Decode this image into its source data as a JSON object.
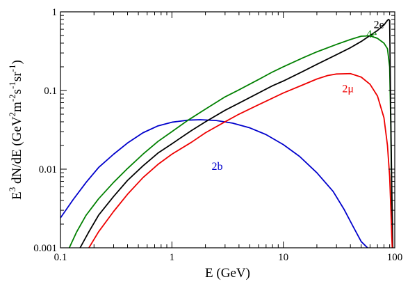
{
  "chart_data": {
    "type": "line",
    "title": "",
    "xlabel": "E (GeV)",
    "ylabel": {
      "parts": [
        "E",
        "3",
        " dN/dE (GeV",
        "2",
        "m",
        "-2",
        "s",
        "-1",
        "sr",
        "-1",
        ")"
      ]
    },
    "xscale": "log",
    "yscale": "log",
    "xlim": [
      0.1,
      100
    ],
    "ylim": [
      0.001,
      1
    ],
    "grid": false,
    "legend": "none",
    "x_ticks": [
      {
        "value": 0.1,
        "label": "0.1"
      },
      {
        "value": 1,
        "label": "1"
      },
      {
        "value": 10,
        "label": "10"
      },
      {
        "value": 100,
        "label": "100"
      }
    ],
    "y_ticks": [
      {
        "value": 0.001,
        "label": "0.001"
      },
      {
        "value": 0.01,
        "label": "0.01"
      },
      {
        "value": 0.1,
        "label": "0.1"
      },
      {
        "value": 1,
        "label": "1"
      }
    ],
    "series": [
      {
        "name": "2b",
        "color": "#0000cc",
        "label_at": [
          2.55,
          0.0098
        ],
        "points": [
          [
            0.1,
            0.0024
          ],
          [
            0.13,
            0.0041
          ],
          [
            0.17,
            0.0068
          ],
          [
            0.22,
            0.0105
          ],
          [
            0.3,
            0.0155
          ],
          [
            0.4,
            0.0215
          ],
          [
            0.55,
            0.029
          ],
          [
            0.75,
            0.0355
          ],
          [
            1.0,
            0.0395
          ],
          [
            1.4,
            0.042
          ],
          [
            1.8,
            0.0425
          ],
          [
            2.5,
            0.0415
          ],
          [
            3.5,
            0.0385
          ],
          [
            5.0,
            0.0335
          ],
          [
            7.0,
            0.0275
          ],
          [
            10,
            0.0205
          ],
          [
            14,
            0.0145
          ],
          [
            20,
            0.009
          ],
          [
            28,
            0.0052
          ],
          [
            35,
            0.0031
          ],
          [
            42,
            0.0019
          ],
          [
            50,
            0.0012
          ],
          [
            57,
            0.001
          ]
        ]
      },
      {
        "name": "4e",
        "color": "#008000",
        "label_at": [
          62,
          0.47
        ],
        "points": [
          [
            0.12,
            0.001
          ],
          [
            0.14,
            0.0016
          ],
          [
            0.17,
            0.0026
          ],
          [
            0.22,
            0.0042
          ],
          [
            0.3,
            0.0068
          ],
          [
            0.4,
            0.0102
          ],
          [
            0.55,
            0.0155
          ],
          [
            0.75,
            0.0225
          ],
          [
            1.0,
            0.03
          ],
          [
            1.4,
            0.042
          ],
          [
            2.0,
            0.058
          ],
          [
            3.0,
            0.083
          ],
          [
            4.0,
            0.102
          ],
          [
            6.0,
            0.138
          ],
          [
            8.0,
            0.172
          ],
          [
            10,
            0.2
          ],
          [
            15,
            0.26
          ],
          [
            20,
            0.31
          ],
          [
            30,
            0.385
          ],
          [
            40,
            0.445
          ],
          [
            50,
            0.49
          ],
          [
            60,
            0.495
          ],
          [
            70,
            0.46
          ],
          [
            80,
            0.4
          ],
          [
            86,
            0.34
          ],
          [
            90,
            0.2
          ],
          [
            92,
            0.04
          ],
          [
            94,
            0.004
          ],
          [
            95,
            0.001
          ]
        ]
      },
      {
        "name": "2e",
        "color": "#000000",
        "label_at": [
          72,
          0.62
        ],
        "points": [
          [
            0.15,
            0.001
          ],
          [
            0.18,
            0.0016
          ],
          [
            0.22,
            0.0026
          ],
          [
            0.3,
            0.0045
          ],
          [
            0.4,
            0.0072
          ],
          [
            0.55,
            0.011
          ],
          [
            0.75,
            0.016
          ],
          [
            1.0,
            0.021
          ],
          [
            1.5,
            0.031
          ],
          [
            2.0,
            0.04
          ],
          [
            3.0,
            0.056
          ],
          [
            4.0,
            0.069
          ],
          [
            6.0,
            0.093
          ],
          [
            8.0,
            0.115
          ],
          [
            10,
            0.132
          ],
          [
            15,
            0.175
          ],
          [
            20,
            0.215
          ],
          [
            30,
            0.285
          ],
          [
            40,
            0.35
          ],
          [
            50,
            0.42
          ],
          [
            60,
            0.5
          ],
          [
            70,
            0.58
          ],
          [
            80,
            0.68
          ],
          [
            86,
            0.78
          ],
          [
            88,
            0.8
          ],
          [
            90,
            0.78
          ],
          [
            92,
            0.05
          ],
          [
            94,
            0.006
          ],
          [
            96,
            0.001
          ]
        ]
      },
      {
        "name": "2μ",
        "color": "#ee0000",
        "label_at": [
          38,
          0.095
        ],
        "points": [
          [
            0.18,
            0.001
          ],
          [
            0.22,
            0.0016
          ],
          [
            0.3,
            0.0029
          ],
          [
            0.4,
            0.0048
          ],
          [
            0.55,
            0.0078
          ],
          [
            0.75,
            0.0115
          ],
          [
            1.0,
            0.0155
          ],
          [
            1.5,
            0.022
          ],
          [
            2.0,
            0.029
          ],
          [
            3.0,
            0.04
          ],
          [
            4.0,
            0.05
          ],
          [
            6.0,
            0.066
          ],
          [
            8.0,
            0.08
          ],
          [
            10,
            0.093
          ],
          [
            15,
            0.118
          ],
          [
            20,
            0.14
          ],
          [
            25,
            0.155
          ],
          [
            30,
            0.162
          ],
          [
            40,
            0.164
          ],
          [
            50,
            0.148
          ],
          [
            60,
            0.12
          ],
          [
            70,
            0.085
          ],
          [
            80,
            0.045
          ],
          [
            86,
            0.02
          ],
          [
            90,
            0.008
          ],
          [
            92,
            0.0035
          ],
          [
            94,
            0.0014
          ],
          [
            95,
            0.001
          ]
        ]
      }
    ]
  }
}
